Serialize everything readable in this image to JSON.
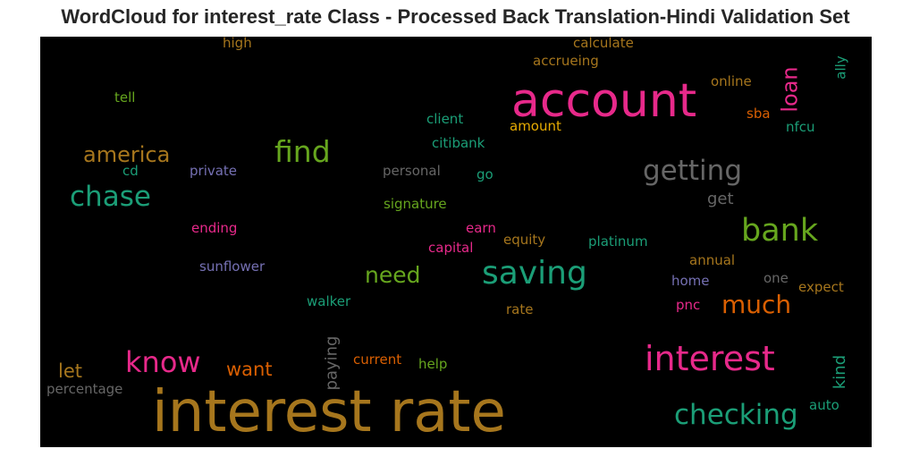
{
  "title": "WordCloud for interest_rate Class - Processed Back Translation-Hindi Validation Set",
  "background": "#000000",
  "words": [
    {
      "text": "interest rate",
      "color": "#a6761d"
    },
    {
      "text": "account",
      "color": "#e7298a"
    },
    {
      "text": "interest",
      "color": "#e7298a"
    },
    {
      "text": "checking",
      "color": "#1b9e77"
    },
    {
      "text": "saving",
      "color": "#1b9e77"
    },
    {
      "text": "bank",
      "color": "#66a61e"
    },
    {
      "text": "getting",
      "color": "#666666"
    },
    {
      "text": "find",
      "color": "#66a61e"
    },
    {
      "text": "chase",
      "color": "#1b9e77"
    },
    {
      "text": "know",
      "color": "#e7298a"
    },
    {
      "text": "america",
      "color": "#a6761d"
    },
    {
      "text": "much",
      "color": "#d95f02"
    },
    {
      "text": "need",
      "color": "#66a61e"
    },
    {
      "text": "loan",
      "color": "#e7298a"
    },
    {
      "text": "want",
      "color": "#d95f02"
    },
    {
      "text": "let",
      "color": "#a6761d"
    },
    {
      "text": "kind",
      "color": "#1b9e77"
    },
    {
      "text": "paying",
      "color": "#666666"
    },
    {
      "text": "get",
      "color": "#666666"
    },
    {
      "text": "high",
      "color": "#a6761d"
    },
    {
      "text": "calculate",
      "color": "#a6761d"
    },
    {
      "text": "accrueing",
      "color": "#a6761d"
    },
    {
      "text": "ally",
      "color": "#1b9e77"
    },
    {
      "text": "online",
      "color": "#a6761d"
    },
    {
      "text": "tell",
      "color": "#66a61e"
    },
    {
      "text": "client",
      "color": "#1b9e77"
    },
    {
      "text": "amount",
      "color": "#e6ab02"
    },
    {
      "text": "sba",
      "color": "#d95f02"
    },
    {
      "text": "nfcu",
      "color": "#1b9e77"
    },
    {
      "text": "citibank",
      "color": "#1b9e77"
    },
    {
      "text": "cd",
      "color": "#1b9e77"
    },
    {
      "text": "private",
      "color": "#7570b3"
    },
    {
      "text": "personal",
      "color": "#666666"
    },
    {
      "text": "go",
      "color": "#1b9e77"
    },
    {
      "text": "signature",
      "color": "#66a61e"
    },
    {
      "text": "ending",
      "color": "#e7298a"
    },
    {
      "text": "earn",
      "color": "#e7298a"
    },
    {
      "text": "capital",
      "color": "#e7298a"
    },
    {
      "text": "equity",
      "color": "#a6761d"
    },
    {
      "text": "platinum",
      "color": "#1b9e77"
    },
    {
      "text": "sunflower",
      "color": "#7570b3"
    },
    {
      "text": "annual",
      "color": "#a6761d"
    },
    {
      "text": "one",
      "color": "#666666"
    },
    {
      "text": "home",
      "color": "#7570b3"
    },
    {
      "text": "expect",
      "color": "#a6761d"
    },
    {
      "text": "walker",
      "color": "#1b9e77"
    },
    {
      "text": "pnc",
      "color": "#e7298a"
    },
    {
      "text": "rate",
      "color": "#a6761d"
    },
    {
      "text": "current",
      "color": "#d95f02"
    },
    {
      "text": "help",
      "color": "#66a61e"
    },
    {
      "text": "percentage",
      "color": "#666666"
    },
    {
      "text": "auto",
      "color": "#1b9e77"
    }
  ]
}
